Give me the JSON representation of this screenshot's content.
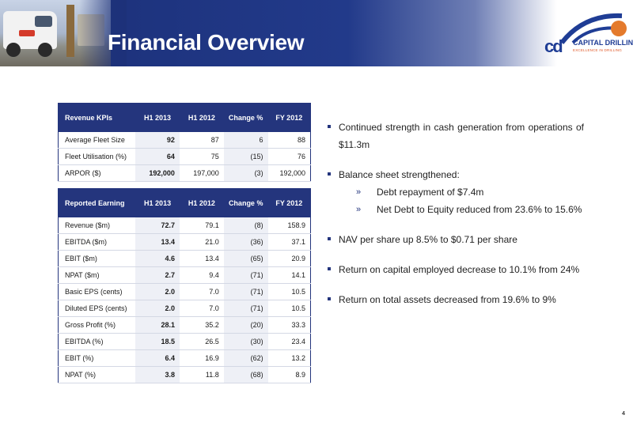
{
  "header": {
    "title": "Financial Overview",
    "logo_mark": "cd",
    "logo_name": "CAPITAL DRILLING",
    "logo_tagline": "EXCELLENCE IN DRILLING"
  },
  "revenue_table": {
    "headers": [
      "Revenue KPIs",
      "H1 2013",
      "H1 2012",
      "Change %",
      "FY 2012"
    ],
    "rows": [
      [
        "Average Fleet Size",
        "92",
        "87",
        "6",
        "88"
      ],
      [
        "Fleet Utilisation (%)",
        "64",
        "75",
        "(15)",
        "76"
      ],
      [
        "ARPOR ($)",
        "192,000",
        "197,000",
        "(3)",
        "192,000"
      ]
    ]
  },
  "earnings_table": {
    "headers": [
      "Reported Earning",
      "H1 2013",
      "H1 2012",
      "Change %",
      "FY 2012"
    ],
    "groups": [
      [
        [
          "Revenue ($m)",
          "72.7",
          "79.1",
          "(8)",
          "158.9"
        ],
        [
          "EBITDA ($m)",
          "13.4",
          "21.0",
          "(36)",
          "37.1"
        ],
        [
          "EBIT ($m)",
          "4.6",
          "13.4",
          "(65)",
          "20.9"
        ],
        [
          "NPAT ($m)",
          "2.7",
          "9.4",
          "(71)",
          "14.1"
        ]
      ],
      [
        [
          "Basic EPS (cents)",
          "2.0",
          "7.0",
          "(71)",
          "10.5"
        ],
        [
          "Diluted EPS (cents)",
          "2.0",
          "7.0",
          "(71)",
          "10.5"
        ]
      ],
      [
        [
          "Gross Profit (%)",
          "28.1",
          "35.2",
          "(20)",
          "33.3"
        ],
        [
          "EBITDA (%)",
          "18.5",
          "26.5",
          "(30)",
          "23.4"
        ],
        [
          "EBIT (%)",
          "6.4",
          "16.9",
          "(62)",
          "13.2"
        ],
        [
          "NPAT (%)",
          "3.8",
          "11.8",
          "(68)",
          "8.9"
        ]
      ]
    ]
  },
  "bullets": [
    {
      "text": "Continued strength in cash generation from operations of $11.3m"
    },
    {
      "text": "Balance sheet strengthened:",
      "subs": [
        "Debt repayment of $7.4m",
        "Net Debt to Equity reduced from 23.6% to 15.6%"
      ]
    },
    {
      "text": "NAV per share up 8.5% to $0.71 per share"
    },
    {
      "text": "Return on capital employed decrease to 10.1% from 24%"
    },
    {
      "text": "Return on total assets decreased from 19.6% to 9%"
    }
  ],
  "sub_marker": "»",
  "page_number": "4"
}
